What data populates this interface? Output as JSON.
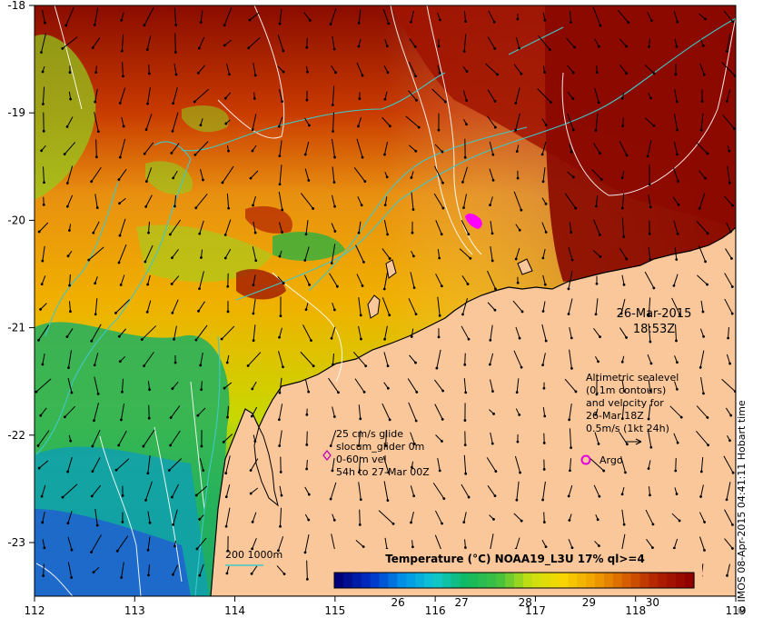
{
  "map": {
    "lon_ticks": [
      "112",
      "113",
      "114",
      "115",
      "116",
      "117",
      "118",
      "119"
    ],
    "lat_ticks": [
      "-18",
      "-19",
      "-20",
      "-21",
      "-22",
      "-23"
    ],
    "timestamp_date": "26-Mar-2015",
    "timestamp_time": "18:53Z"
  },
  "legend_info": {
    "line1": "Altimetric sealevel",
    "line2": "(0.1m contours)",
    "line3": "and velocity for",
    "line4": "26-Mar 18Z",
    "line5": "0.5m/s (1kt 24h)"
  },
  "glider_info": {
    "line1": "25 cm/s glide",
    "line2": "slocum_glider 0m",
    "line3": "0-60m vel",
    "line4": "54h to 27-Mar 00Z"
  },
  "argo_label": "Argo",
  "bathymetry_label": "200  1000m",
  "colorbar": {
    "title": "Temperature (°C) NOAA19_L3U 17% ql>=4",
    "ticks": [
      "26",
      "27",
      "28",
      "29",
      "30"
    ],
    "min": 25.0,
    "max": 30.65,
    "colors": [
      "#00007a",
      "#0030c8",
      "#0090e8",
      "#10c8d0",
      "#10b860",
      "#40c040",
      "#c8e010",
      "#f8d800",
      "#f0a000",
      "#d86000",
      "#b02000",
      "#900000"
    ]
  },
  "credit": "© IMOS 08-Apr-2015 04:41:11 Hobart time"
}
